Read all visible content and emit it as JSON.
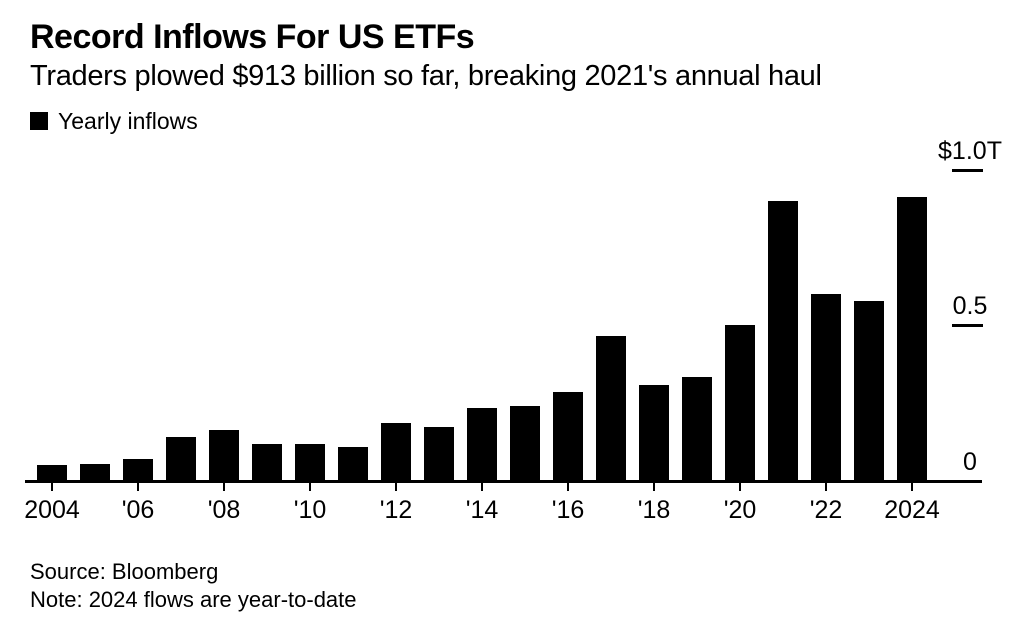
{
  "header": {
    "title": "Record Inflows For US ETFs",
    "subtitle": "Traders plowed $913 billion so far, breaking 2021's annual haul"
  },
  "legend": {
    "label": "Yearly inflows",
    "swatch_color": "#000000"
  },
  "chart_data": {
    "type": "bar",
    "title": "Record Inflows For US ETFs",
    "subtitle": "Traders plowed $913 billion so far, breaking 2021's annual haul",
    "unit": "trillions of US dollars",
    "bar_color": "#000000",
    "background_color": "#ffffff",
    "grid": false,
    "legend_entries": [
      "Yearly inflows"
    ],
    "legend_position": "top-left",
    "categories": [
      2004,
      2005,
      2006,
      2007,
      2008,
      2009,
      2010,
      2011,
      2012,
      2013,
      2014,
      2015,
      2016,
      2017,
      2018,
      2019,
      2020,
      2021,
      2022,
      2023,
      2024
    ],
    "values": [
      0.05,
      0.055,
      0.07,
      0.14,
      0.165,
      0.12,
      0.12,
      0.11,
      0.185,
      0.175,
      0.235,
      0.24,
      0.285,
      0.465,
      0.31,
      0.335,
      0.5,
      0.9,
      0.6,
      0.58,
      0.913
    ],
    "ylim": [
      0,
      1.0
    ],
    "y_ticks": [
      {
        "label": "$1.0T",
        "value": 1.0
      },
      {
        "label": "0.5",
        "value": 0.5
      },
      {
        "label": "0",
        "value": 0
      }
    ],
    "x_tick_labels": [
      "2004",
      "'06",
      "'08",
      "'10",
      "'12",
      "'14",
      "'16",
      "'18",
      "'20",
      "'22",
      "2024"
    ],
    "x_tick_every": 2,
    "yaxis_side": "right"
  },
  "footer": {
    "source": "Source: Bloomberg",
    "note": "Note: 2024 flows are year-to-date"
  }
}
